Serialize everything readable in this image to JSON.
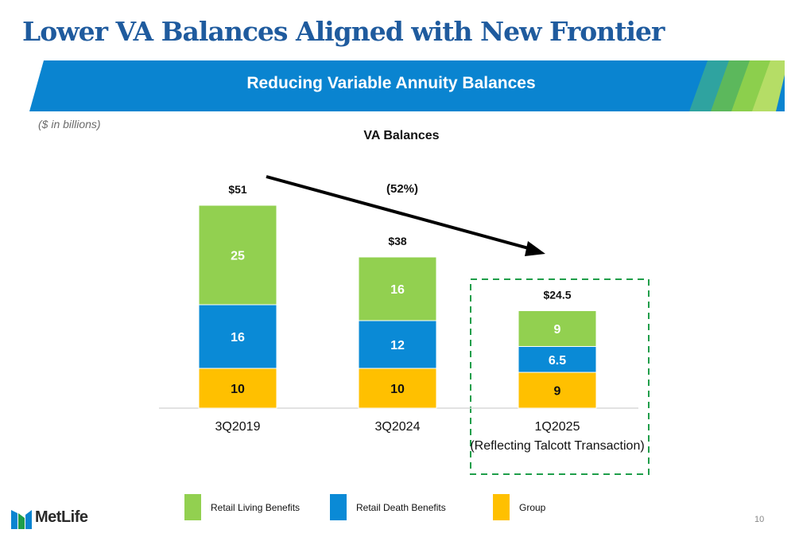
{
  "header": {
    "title": "Lower VA Balances Aligned with New Frontier",
    "banner": "Reducing Variable Annuity Balances",
    "units_note": "($ in billions)"
  },
  "colors": {
    "title": "#1f5b9e",
    "banner": "#0a84d0",
    "retail_living": "#92d050",
    "retail_death": "#0a8ad6",
    "group": "#ffc000",
    "dashed_box": "#1f9e4a"
  },
  "chart_data": {
    "type": "bar",
    "stacked": true,
    "title": "VA Balances",
    "categories": [
      "3Q2019",
      "3Q2024",
      "1Q2025\n(Reflecting Talcott Transaction)"
    ],
    "category_lines": [
      [
        "3Q2019"
      ],
      [
        "3Q2024"
      ],
      [
        "1Q2025",
        "(Reflecting Talcott Transaction)"
      ]
    ],
    "series": [
      {
        "name": "Group",
        "values": [
          10,
          10,
          9
        ],
        "labels": [
          "10",
          "10",
          "9"
        ]
      },
      {
        "name": "Retail Death Benefits",
        "values": [
          16,
          12,
          6.5
        ],
        "labels": [
          "16",
          "12",
          "6.5"
        ]
      },
      {
        "name": "Retail Living Benefits",
        "values": [
          25,
          16,
          9
        ],
        "labels": [
          "25",
          "16",
          "9"
        ]
      }
    ],
    "totals": [
      "$51",
      "$38",
      "$24.5"
    ],
    "annotation": "(52%)",
    "highlighted_category": "1Q2025"
  },
  "legend": [
    {
      "label": "Retail Living Benefits"
    },
    {
      "label": "Retail Death Benefits"
    },
    {
      "label": "Group"
    }
  ],
  "footer": {
    "logo_text": "MetLife",
    "page_number": "10"
  }
}
